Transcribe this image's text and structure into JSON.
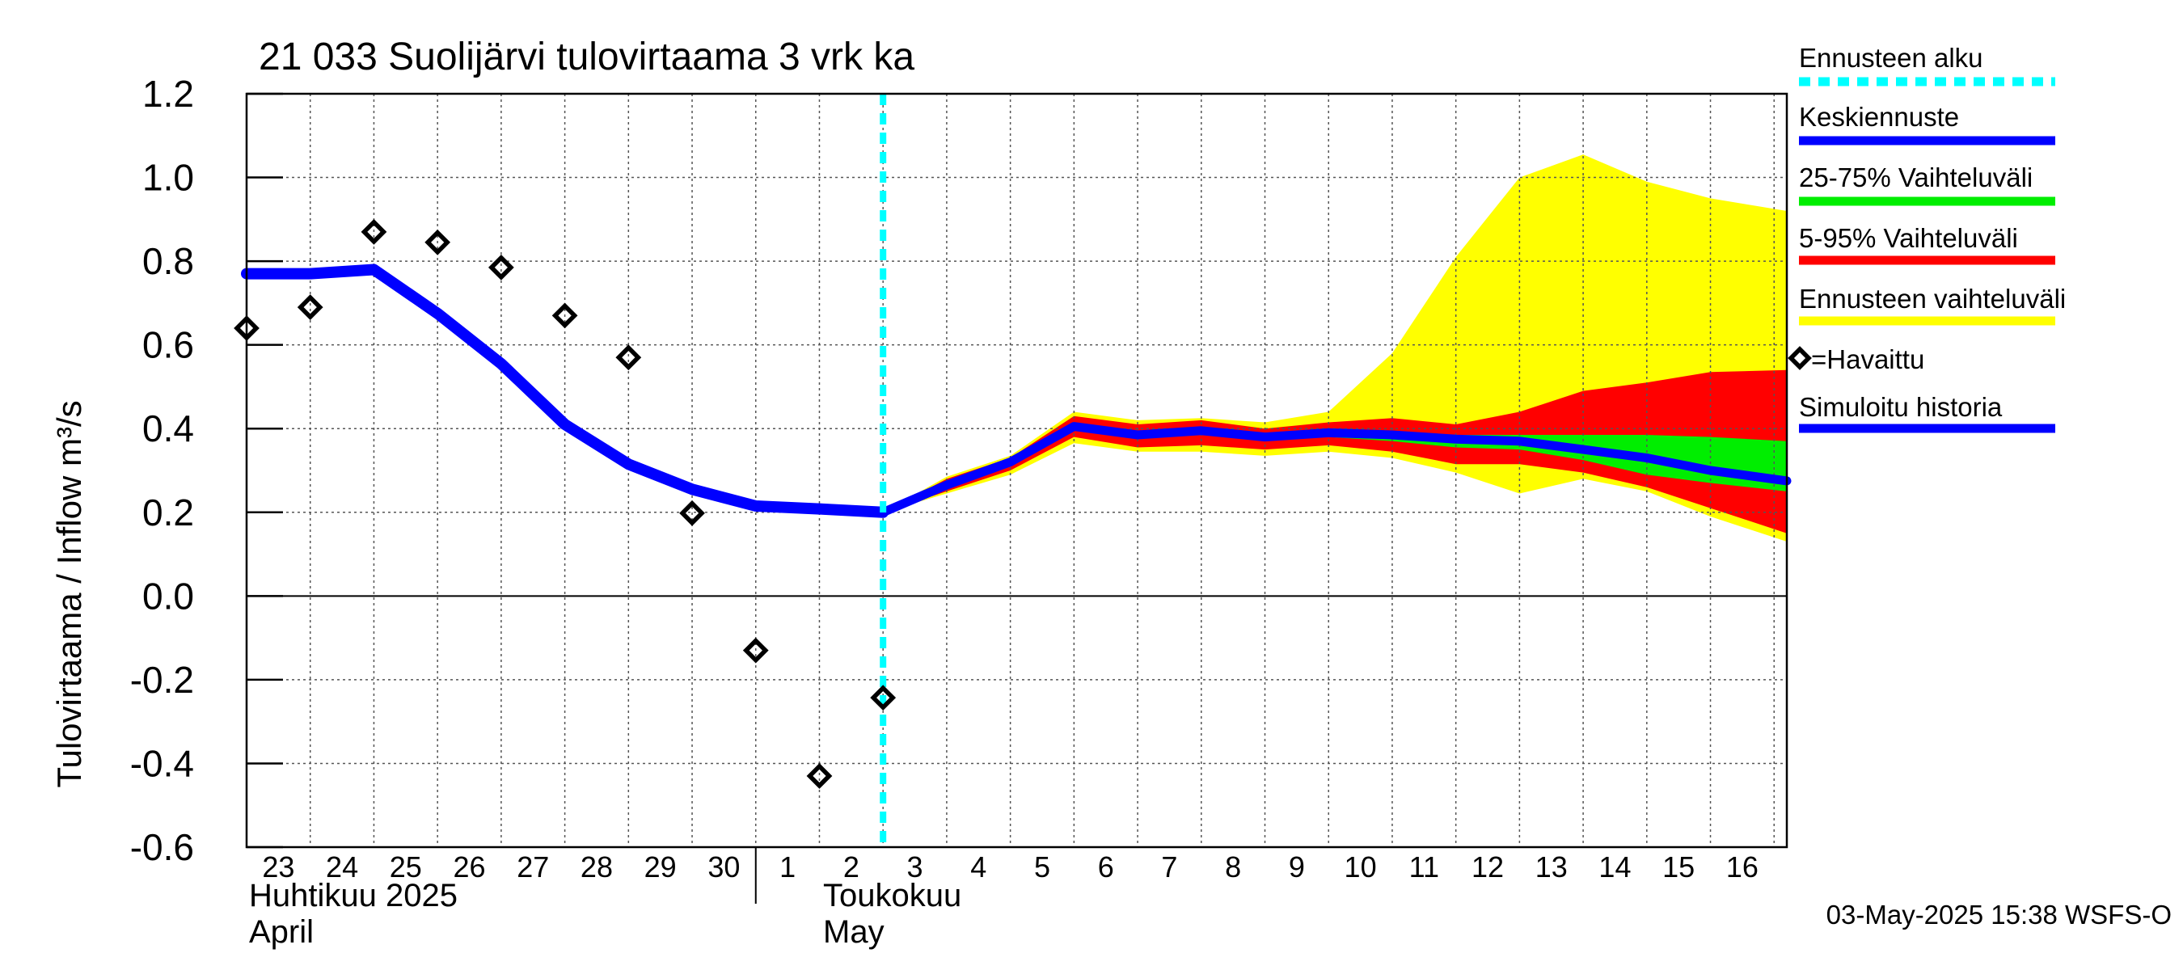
{
  "chart_data": {
    "type": "line",
    "title": "21 033 Suolijärvi tulovirtaama 3 vrk ka",
    "ylabel": "Tulovirtaama / Inflow   m³/s",
    "ylim": [
      -0.6,
      1.2
    ],
    "yticks": [
      "1.2",
      "1.0",
      "0.8",
      "0.6",
      "0.4",
      "0.2",
      "0.0",
      "-0.2",
      "-0.4",
      "-0.6"
    ],
    "grid": true,
    "x_day_labels": [
      "23",
      "24",
      "25",
      "26",
      "27",
      "28",
      "29",
      "30",
      "1",
      "2",
      "3",
      "4",
      "5",
      "6",
      "7",
      "8",
      "9",
      "10",
      "11",
      "12",
      "13",
      "14",
      "15",
      "16"
    ],
    "x_month_labels": {
      "april_fi": "Huhtikuu  2025",
      "april_en": "April",
      "may_fi": "Toukokuu",
      "may_en": "May"
    },
    "forecast_start_day": 10,
    "series": {
      "simulated_history": {
        "name": "Simuloitu historia",
        "days": [
          0,
          1,
          2,
          3,
          4,
          5,
          6,
          7,
          8,
          9,
          10
        ],
        "values": [
          0.77,
          0.77,
          0.78,
          0.675,
          0.555,
          0.41,
          0.315,
          0.255,
          0.215,
          0.208,
          0.2
        ]
      },
      "observed": {
        "name": "=Havaittu",
        "days": [
          0,
          1,
          2,
          3,
          4,
          5,
          6,
          7,
          8,
          9,
          10
        ],
        "values": [
          0.64,
          0.69,
          0.87,
          0.845,
          0.785,
          0.67,
          0.57,
          0.198,
          -0.13,
          -0.43,
          -0.243
        ]
      },
      "median_forecast": {
        "name": "Keskiennuste",
        "days": [
          10,
          11,
          12,
          13,
          14,
          15,
          16,
          17,
          18,
          19,
          20,
          21,
          22,
          23,
          24.2
        ],
        "values": [
          0.2,
          0.265,
          0.32,
          0.405,
          0.385,
          0.395,
          0.38,
          0.39,
          0.385,
          0.375,
          0.37,
          0.35,
          0.33,
          0.3,
          0.275
        ]
      },
      "range_25_75": {
        "name": "25-75% Vaihteluväli",
        "days": [
          10,
          11,
          12,
          13,
          14,
          15,
          16,
          17,
          18,
          19,
          20,
          21,
          22,
          23,
          24.2
        ],
        "upper": [
          0.2,
          0.27,
          0.325,
          0.41,
          0.39,
          0.4,
          0.385,
          0.395,
          0.39,
          0.385,
          0.385,
          0.385,
          0.385,
          0.38,
          0.37
        ],
        "lower": [
          0.2,
          0.26,
          0.31,
          0.395,
          0.375,
          0.385,
          0.37,
          0.38,
          0.37,
          0.355,
          0.35,
          0.325,
          0.29,
          0.27,
          0.25
        ]
      },
      "range_5_95": {
        "name": "5-95% Vaihteluväli",
        "days": [
          10,
          11,
          12,
          13,
          14,
          15,
          16,
          17,
          18,
          19,
          20,
          21,
          22,
          23,
          24.2
        ],
        "upper": [
          0.2,
          0.28,
          0.33,
          0.43,
          0.41,
          0.42,
          0.4,
          0.415,
          0.425,
          0.41,
          0.44,
          0.49,
          0.51,
          0.535,
          0.54
        ],
        "lower": [
          0.2,
          0.25,
          0.3,
          0.38,
          0.355,
          0.36,
          0.35,
          0.36,
          0.345,
          0.315,
          0.315,
          0.295,
          0.26,
          0.21,
          0.15
        ]
      },
      "ensemble_range": {
        "name": "Ennusteen vaihteluväli",
        "days": [
          10,
          11,
          12,
          13,
          14,
          15,
          16,
          17,
          18,
          19,
          20,
          21,
          22,
          23,
          24.2
        ],
        "upper": [
          0.2,
          0.285,
          0.335,
          0.44,
          0.42,
          0.425,
          0.415,
          0.44,
          0.58,
          0.81,
          1.0,
          1.055,
          0.99,
          0.95,
          0.92
        ],
        "lower": [
          0.2,
          0.245,
          0.29,
          0.365,
          0.345,
          0.345,
          0.335,
          0.345,
          0.33,
          0.295,
          0.245,
          0.28,
          0.25,
          0.19,
          0.13
        ]
      }
    },
    "legend": {
      "placement": "right",
      "items": [
        {
          "label": "Ennusteen alku",
          "color": "#00ffff",
          "style": "dashed"
        },
        {
          "label": "Keskiennuste",
          "color": "#0000ff",
          "style": "line"
        },
        {
          "label": "25-75% Vaihteluväli",
          "color": "#00ee00",
          "style": "line"
        },
        {
          "label": "5-95% Vaihteluväli",
          "color": "#ff0000",
          "style": "line"
        },
        {
          "label": "Ennusteen vaihteluväli",
          "color": "#ffff00",
          "style": "line"
        },
        {
          "label": "=Havaittu",
          "color": "#000000",
          "style": "diamond"
        },
        {
          "label": "Simuloitu historia",
          "color": "#0000ff",
          "style": "line"
        }
      ]
    },
    "colors": {
      "median": "#0000ff",
      "history": "#0000ff",
      "band_25_75": "#00ee00",
      "band_5_95": "#ff0000",
      "band_ensemble": "#ffff00",
      "forecast_start": "#00ffff"
    },
    "footer": "03-May-2025 15:38 WSFS-O"
  }
}
